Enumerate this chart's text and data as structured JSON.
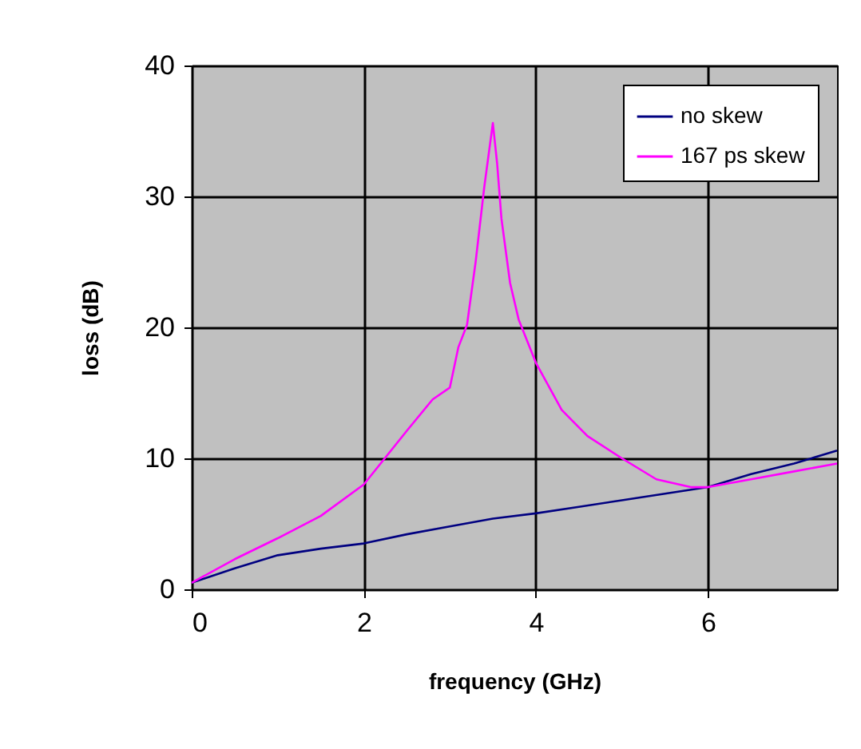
{
  "chart_data": {
    "type": "line",
    "xlabel": "frequency (GHz)",
    "ylabel": "loss (dB)",
    "xlim": [
      0,
      7.5
    ],
    "xticks": [
      0,
      2,
      4,
      6
    ],
    "ylim": [
      0,
      40
    ],
    "yticks": [
      0,
      10,
      20,
      30,
      40
    ],
    "grid": true,
    "legend": "top right",
    "marker": "none",
    "line_style": "solid",
    "series": [
      {
        "name": "no skew",
        "color": "#000080",
        "x": [
          0,
          0.5,
          1,
          1.5,
          2,
          2.5,
          3,
          3.5,
          4,
          4.5,
          5,
          5.5,
          6,
          6.5,
          7,
          7.5
        ],
        "values": [
          0.5,
          1.6,
          2.6,
          3.1,
          3.5,
          4.2,
          4.8,
          5.4,
          5.8,
          6.3,
          6.8,
          7.3,
          7.8,
          8.8,
          9.6,
          10.6
        ]
      },
      {
        "name": "167 ps skew",
        "color": "#ff00ff",
        "x": [
          0,
          0.5,
          1,
          1.5,
          2,
          2.5,
          2.8,
          3,
          3.1,
          3.2,
          3.3,
          3.4,
          3.5,
          3.55,
          3.6,
          3.7,
          3.8,
          4,
          4.3,
          4.6,
          5,
          5.4,
          5.8,
          6,
          6.5,
          7,
          7.5
        ],
        "values": [
          0.5,
          2.3,
          3.9,
          5.6,
          8,
          12.1,
          14.5,
          15.4,
          18.5,
          20.2,
          25,
          30.7,
          35.6,
          32.5,
          28.3,
          23.4,
          20.6,
          17.3,
          13.7,
          11.7,
          10,
          8.4,
          7.8,
          7.8,
          8.4,
          9,
          9.6
        ]
      }
    ]
  }
}
